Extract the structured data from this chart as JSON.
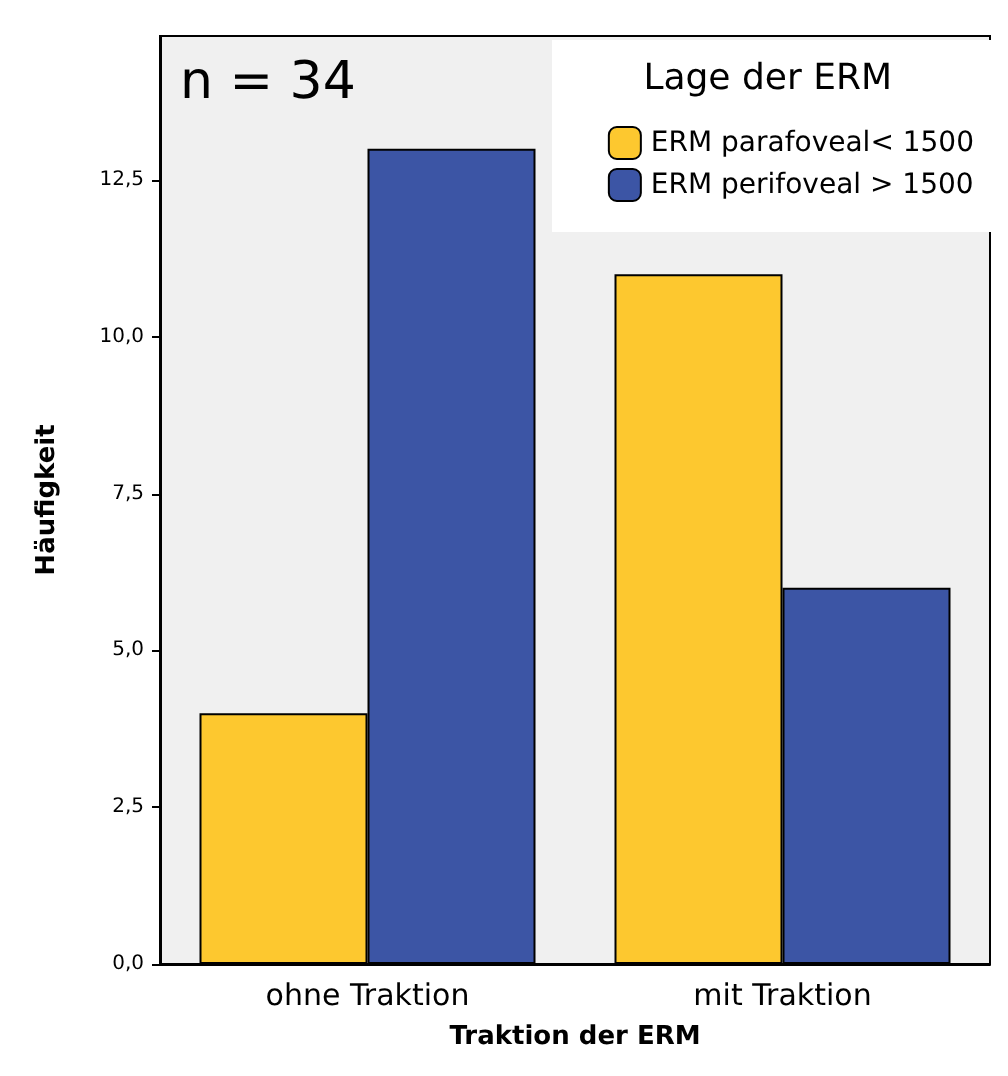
{
  "chart_data": {
    "type": "bar",
    "xlabel": "Traktion der ERM",
    "ylabel": "Häufigkeit",
    "legend_title": "Lage der ERM",
    "legend": "top right",
    "annotations": [
      "n = 34"
    ],
    "categories": [
      "ohne Traktion",
      "mit Traktion"
    ],
    "series": [
      {
        "name": "ERM parafoveal< 1500",
        "color": "#fdc82f",
        "values": [
          4,
          11
        ]
      },
      {
        "name": "ERM perifoveal > 1500",
        "color": "#3c55a5",
        "values": [
          13,
          6
        ]
      }
    ],
    "ylim": [
      0,
      14.8
    ],
    "yticks": [
      {
        "value": 0,
        "label": "0,0"
      },
      {
        "value": 2.5,
        "label": "2,5"
      },
      {
        "value": 5,
        "label": "5,0"
      },
      {
        "value": 7.5,
        "label": "7,5"
      },
      {
        "value": 10,
        "label": "10,0"
      },
      {
        "value": 12.5,
        "label": "12,5"
      }
    ],
    "grid": false
  }
}
